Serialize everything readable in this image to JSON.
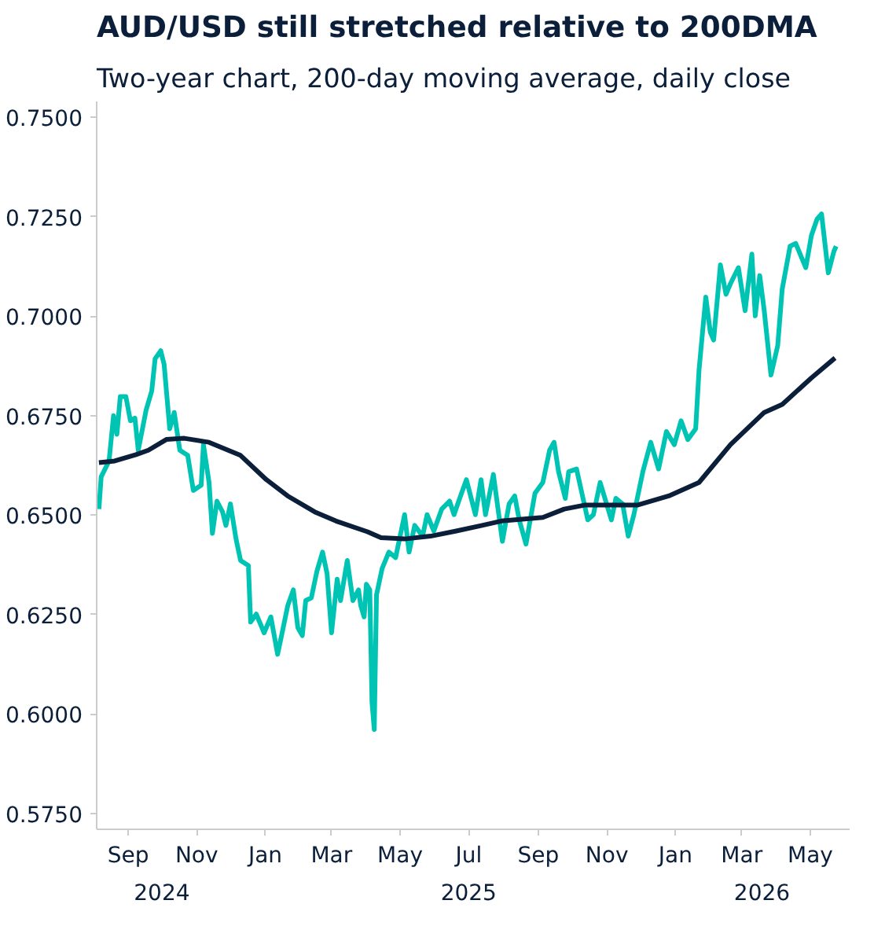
{
  "chart_data": {
    "type": "line",
    "title": "AUD/USD still stretched relative to 200DMA",
    "subtitle": "Two-year chart, 200-day moving average, daily close",
    "xlim": [
      "2024-08-04",
      "2026-06-05"
    ],
    "xticks": [
      {
        "value": "2024-09-01",
        "label": "Sep"
      },
      {
        "value": "2024-11-01",
        "label": "Nov"
      },
      {
        "value": "2025-01-01",
        "label": "Jan"
      },
      {
        "value": "2025-03-01",
        "label": "Mar"
      },
      {
        "value": "2025-05-01",
        "label": "May"
      },
      {
        "value": "2025-07-01",
        "label": "Jul"
      },
      {
        "value": "2025-09-01",
        "label": "Sep"
      },
      {
        "value": "2025-11-01",
        "label": "Nov"
      },
      {
        "value": "2026-01-01",
        "label": "Jan"
      },
      {
        "value": "2026-03-01",
        "label": "Mar"
      },
      {
        "value": "2026-05-01",
        "label": "May"
      }
    ],
    "x2lim": [
      "2024-08-04",
      "2026-06-05"
    ],
    "x2ticks": [
      {
        "value": "2024-10-01",
        "label": "2024"
      },
      {
        "value": "2025-07-01",
        "label": "2025"
      },
      {
        "value": "2026-03-19",
        "label": "2026"
      }
    ],
    "ylim": [
      0.571,
      0.754
    ],
    "yticks": [
      {
        "value": 0.575,
        "label": "0.5750"
      },
      {
        "value": 0.6,
        "label": "0.6000"
      },
      {
        "value": 0.625,
        "label": "0.6250"
      },
      {
        "value": 0.65,
        "label": "0.6500"
      },
      {
        "value": 0.675,
        "label": "0.6750"
      },
      {
        "value": 0.7,
        "label": "0.7000"
      },
      {
        "value": 0.725,
        "label": "0.7250"
      },
      {
        "value": 0.75,
        "label": "0.7500"
      }
    ],
    "grid": false,
    "marker": "none",
    "line_style": "solid",
    "series": [
      {
        "color": "#00c4b3",
        "x": [
          "2024-08-06",
          "2024-08-08",
          "2024-08-15",
          "2024-08-19",
          "2024-08-22",
          "2024-08-25",
          "2024-08-30",
          "2024-09-03",
          "2024-09-07",
          "2024-09-10",
          "2024-09-17",
          "2024-09-22",
          "2024-09-25",
          "2024-09-30",
          "2024-10-03",
          "2024-10-08",
          "2024-10-12",
          "2024-10-17",
          "2024-10-24",
          "2024-10-29",
          "2024-11-05",
          "2024-11-07",
          "2024-11-12",
          "2024-11-15",
          "2024-11-19",
          "2024-11-24",
          "2024-11-27",
          "2024-12-01",
          "2024-12-06",
          "2024-12-10",
          "2024-12-17",
          "2024-12-19",
          "2024-12-24",
          "2024-12-31",
          "2025-01-06",
          "2025-01-12",
          "2025-01-17",
          "2025-01-21",
          "2025-01-26",
          "2025-01-30",
          "2025-02-03",
          "2025-02-06",
          "2025-02-11",
          "2025-02-16",
          "2025-02-21",
          "2025-02-25",
          "2025-03-01",
          "2025-03-06",
          "2025-03-09",
          "2025-03-15",
          "2025-03-20",
          "2025-03-25",
          "2025-03-27",
          "2025-03-30",
          "2025-04-01",
          "2025-04-04",
          "2025-04-06",
          "2025-04-08",
          "2025-04-10",
          "2025-04-15",
          "2025-04-21",
          "2025-04-27",
          "2025-05-05",
          "2025-05-09",
          "2025-05-14",
          "2025-05-21",
          "2025-05-25",
          "2025-05-31",
          "2025-06-07",
          "2025-06-14",
          "2025-06-18",
          "2025-06-23",
          "2025-06-29",
          "2025-07-07",
          "2025-07-12",
          "2025-07-16",
          "2025-07-23",
          "2025-07-31",
          "2025-08-06",
          "2025-08-11",
          "2025-08-15",
          "2025-08-21",
          "2025-08-29",
          "2025-09-05",
          "2025-09-11",
          "2025-09-15",
          "2025-09-19",
          "2025-09-25",
          "2025-09-28",
          "2025-10-05",
          "2025-10-15",
          "2025-10-20",
          "2025-10-26",
          "2025-11-05",
          "2025-11-09",
          "2025-11-15",
          "2025-11-20",
          "2025-11-25",
          "2025-12-03",
          "2025-12-10",
          "2025-12-17",
          "2025-12-24",
          "2025-12-31",
          "2026-01-06",
          "2026-01-12",
          "2026-01-19",
          "2026-01-22",
          "2026-01-28",
          "2026-02-01",
          "2026-02-04",
          "2026-02-10",
          "2026-02-15",
          "2026-02-19",
          "2026-02-26",
          "2026-03-04",
          "2026-03-10",
          "2026-03-13",
          "2026-03-17",
          "2026-03-21",
          "2026-03-27",
          "2026-04-02",
          "2026-04-06",
          "2026-04-13",
          "2026-04-18",
          "2026-04-23",
          "2026-04-27",
          "2026-05-02",
          "2026-05-07",
          "2026-05-11",
          "2026-05-17",
          "2026-05-22",
          "2026-05-24"
        ],
        "values": [
          0.6515,
          0.6596,
          0.6636,
          0.675,
          0.6703,
          0.6798,
          0.6798,
          0.6737,
          0.6744,
          0.6663,
          0.6764,
          0.6812,
          0.6893,
          0.6913,
          0.6879,
          0.6717,
          0.6758,
          0.6663,
          0.665,
          0.6562,
          0.6575,
          0.6677,
          0.6582,
          0.6454,
          0.6535,
          0.6508,
          0.6474,
          0.6528,
          0.644,
          0.6386,
          0.6373,
          0.6231,
          0.6251,
          0.6204,
          0.6244,
          0.615,
          0.6217,
          0.6272,
          0.6312,
          0.6217,
          0.6197,
          0.6285,
          0.6292,
          0.6359,
          0.6407,
          0.6353,
          0.6204,
          0.6339,
          0.6285,
          0.6386,
          0.6285,
          0.6312,
          0.6272,
          0.6244,
          0.6326,
          0.6312,
          0.6029,
          0.5961,
          0.6299,
          0.6366,
          0.6407,
          0.6393,
          0.6501,
          0.6407,
          0.6474,
          0.6447,
          0.6501,
          0.646,
          0.6515,
          0.6535,
          0.6501,
          0.6542,
          0.6589,
          0.6501,
          0.6589,
          0.6501,
          0.6602,
          0.6434,
          0.6528,
          0.6548,
          0.6488,
          0.6427,
          0.6555,
          0.6582,
          0.6663,
          0.6683,
          0.6609,
          0.6542,
          0.6609,
          0.6616,
          0.6488,
          0.6501,
          0.6582,
          0.6488,
          0.6542,
          0.6528,
          0.6447,
          0.6501,
          0.6609,
          0.6683,
          0.6616,
          0.671,
          0.6677,
          0.6737,
          0.669,
          0.6717,
          0.6865,
          0.7048,
          0.696,
          0.694,
          0.7129,
          0.7055,
          0.7082,
          0.7122,
          0.7014,
          0.7156,
          0.7001,
          0.7102,
          0.7014,
          0.6852,
          0.6926,
          0.7068,
          0.7176,
          0.7183,
          0.7149,
          0.7122,
          0.7203,
          0.7244,
          0.7257,
          0.7109,
          0.7163,
          0.7176
        ]
      },
      {
        "color": "#0b1f3a",
        "x": [
          "2024-08-06",
          "2024-08-20",
          "2024-09-08",
          "2024-09-19",
          "2024-10-05",
          "2024-10-21",
          "2024-11-12",
          "2024-12-10",
          "2025-01-02",
          "2025-01-21",
          "2025-02-14",
          "2025-03-05",
          "2025-04-02",
          "2025-04-14",
          "2025-05-05",
          "2025-05-28",
          "2025-06-20",
          "2025-07-13",
          "2025-07-30",
          "2025-09-05",
          "2025-09-24",
          "2025-10-12",
          "2025-11-28",
          "2025-12-26",
          "2026-01-22",
          "2026-02-19",
          "2026-03-21",
          "2026-04-06",
          "2026-05-02",
          "2026-05-23"
        ],
        "values": [
          0.6632,
          0.6636,
          0.6652,
          0.6663,
          0.669,
          0.6693,
          0.6683,
          0.665,
          0.6589,
          0.6548,
          0.6508,
          0.6485,
          0.6458,
          0.6443,
          0.644,
          0.6447,
          0.646,
          0.6474,
          0.6485,
          0.6494,
          0.6515,
          0.6525,
          0.6525,
          0.6548,
          0.6582,
          0.6677,
          0.6758,
          0.6778,
          0.6845,
          0.6895
        ]
      }
    ]
  }
}
